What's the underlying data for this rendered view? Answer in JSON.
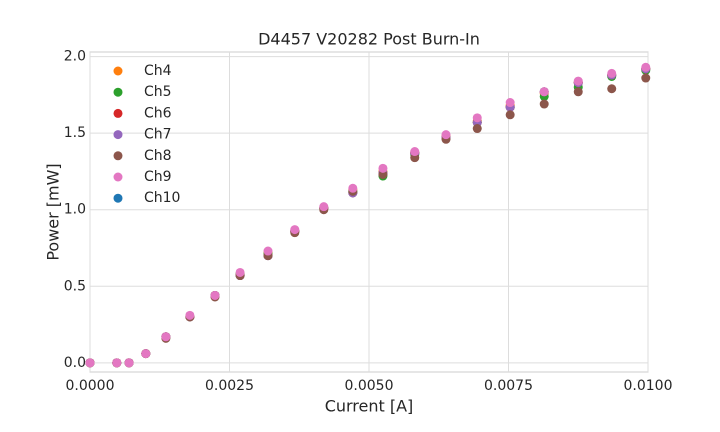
{
  "chart_data": {
    "type": "scatter",
    "title": "D4457 V20282 Post Burn-In",
    "x_label": "Current [A]",
    "y_label": "Power [mW]",
    "x": [
      0,
      0.00048,
      0.0007,
      0.001,
      0.00136,
      0.00179,
      0.00224,
      0.00269,
      0.00319,
      0.00367,
      0.00419,
      0.00471,
      0.00525,
      0.00582,
      0.00638,
      0.00694,
      0.00753,
      0.00814,
      0.00875,
      0.00935,
      0.00996
    ],
    "series": [
      {
        "name": "Ch4",
        "color": "#ff7f0e",
        "values": [
          0,
          0,
          0,
          0.06,
          0.17,
          0.3,
          0.44,
          0.58,
          0.72,
          0.86,
          1.01,
          1.13,
          1.25,
          1.37,
          1.48,
          1.58,
          1.68,
          1.76,
          1.83,
          1.88,
          1.92
        ]
      },
      {
        "name": "Ch5",
        "color": "#2ca02c",
        "values": [
          0,
          0,
          0,
          0.06,
          0.17,
          0.3,
          0.44,
          0.58,
          0.71,
          0.86,
          1.01,
          1.12,
          1.22,
          1.36,
          1.47,
          1.57,
          1.67,
          1.74,
          1.8,
          1.87,
          1.91
        ]
      },
      {
        "name": "Ch6",
        "color": "#d62728",
        "values": [
          0,
          0,
          0,
          0.06,
          0.17,
          0.3,
          0.44,
          0.57,
          0.7,
          0.86,
          1.01,
          1.11,
          1.24,
          1.37,
          1.47,
          1.57,
          1.67,
          1.77,
          1.83,
          1.88,
          1.92
        ]
      },
      {
        "name": "Ch7",
        "color": "#9467bd",
        "values": [
          0,
          0,
          0,
          0.06,
          0.17,
          0.3,
          0.44,
          0.57,
          0.7,
          0.86,
          1.01,
          1.11,
          1.24,
          1.37,
          1.47,
          1.57,
          1.67,
          1.77,
          1.83,
          1.88,
          1.92
        ]
      },
      {
        "name": "Ch8",
        "color": "#8c564b",
        "values": [
          0,
          0,
          0,
          0.06,
          0.16,
          0.3,
          0.43,
          0.57,
          0.7,
          0.85,
          1.0,
          1.12,
          1.23,
          1.34,
          1.46,
          1.53,
          1.62,
          1.69,
          1.77,
          1.79,
          1.86
        ]
      },
      {
        "name": "Ch9",
        "color": "#e377c2",
        "values": [
          0,
          0,
          0,
          0.06,
          0.17,
          0.31,
          0.44,
          0.59,
          0.73,
          0.87,
          1.02,
          1.14,
          1.27,
          1.38,
          1.49,
          1.6,
          1.7,
          1.77,
          1.84,
          1.89,
          1.93
        ]
      },
      {
        "name": "Ch10",
        "color": "#1f77b4",
        "values": [
          0,
          0,
          0,
          0.06,
          0.17,
          0.3,
          0.44,
          0.57,
          0.7,
          0.86,
          1.01,
          1.11,
          1.24,
          1.37,
          1.47,
          1.57,
          1.67,
          1.77,
          1.83,
          1.88,
          1.92
        ]
      }
    ],
    "xlim": [
      0,
      0.01
    ],
    "xticks": [
      {
        "value": 0,
        "label": "0.0000"
      },
      {
        "value": 0.0025,
        "label": "0.0025"
      },
      {
        "value": 0.005,
        "label": "0.0050"
      },
      {
        "value": 0.0075,
        "label": "0.0075"
      },
      {
        "value": 0.01,
        "label": "0.0100"
      }
    ],
    "ylim": [
      -0.06,
      2.03
    ],
    "yticks": [
      {
        "value": 0,
        "label": "0.0"
      },
      {
        "value": 0.5,
        "label": "0.5"
      },
      {
        "value": 1,
        "label": "1.0"
      },
      {
        "value": 1.5,
        "label": "1.5"
      },
      {
        "value": 2,
        "label": "2.0"
      }
    ],
    "grid": true,
    "legend": "upper left"
  }
}
